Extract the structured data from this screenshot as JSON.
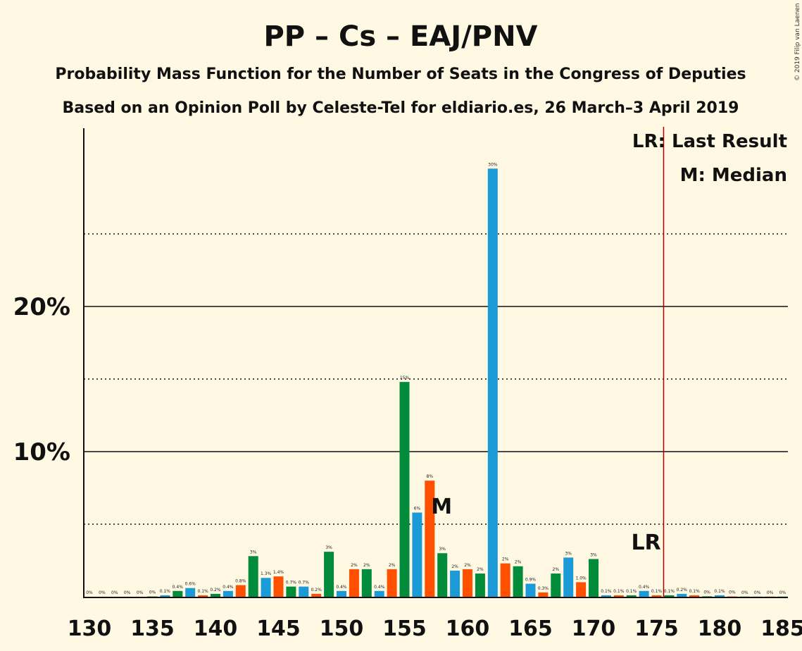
{
  "title": "PP – Cs – EAJ/PNV",
  "subtitle1": "Probability Mass Function for the Number of Seats in the Congress of Deputies",
  "subtitle2": "Based on an Opinion Poll by Celeste-Tel for eldiario.es, 26 March–3 April 2019",
  "copyright": "© 2019 Filip van Laenen",
  "legend": {
    "lr": "LR: Last Result",
    "m": "M: Median"
  },
  "markers": {
    "median_label": "M",
    "lr_label": "LR",
    "median_seat": 158,
    "last_result_seat": 176
  },
  "colors": {
    "background": "#FFF8E2",
    "pp": "#1A9BD7",
    "cs": "#FF5000",
    "pnv": "#008C3A",
    "lr_line": "#B00000"
  },
  "chart_data": {
    "type": "bar",
    "xlabel": "",
    "ylabel": "",
    "xlim": [
      130,
      185
    ],
    "ylim": [
      0,
      32
    ],
    "x_ticks": [
      "130",
      "135",
      "140",
      "145",
      "150",
      "155",
      "160",
      "165",
      "170",
      "175",
      "180",
      "185"
    ],
    "y_ticks": [
      "10%",
      "20%"
    ],
    "x": [
      130,
      131,
      132,
      133,
      134,
      135,
      136,
      137,
      138,
      139,
      140,
      141,
      142,
      143,
      144,
      145,
      146,
      147,
      148,
      149,
      150,
      151,
      152,
      153,
      154,
      155,
      156,
      157,
      158,
      159,
      160,
      161,
      162,
      163,
      164,
      165,
      166,
      167,
      168,
      169,
      170,
      171,
      172,
      173,
      174,
      175,
      176,
      177,
      178,
      179,
      180,
      181,
      182,
      183,
      184,
      185
    ],
    "values": [
      0,
      0,
      0,
      0,
      0,
      0.02,
      0.1,
      0.4,
      0.6,
      0.1,
      0.2,
      0.4,
      0.8,
      2.8,
      1.3,
      1.4,
      0.7,
      0.7,
      0.2,
      3.1,
      0.4,
      1.9,
      1.9,
      0.4,
      1.9,
      14.8,
      5.8,
      8.0,
      3.0,
      1.8,
      1.9,
      1.6,
      29.5,
      2.3,
      2.1,
      0.9,
      0.3,
      1.6,
      2.7,
      1.0,
      2.6,
      0.1,
      0.1,
      0.1,
      0.4,
      0.1,
      0.1,
      0.2,
      0.1,
      0.03,
      0.1,
      0.02,
      0.01,
      0.01,
      0.01,
      0.01
    ],
    "labels": [
      "0%",
      "0%",
      "0%",
      "0%",
      "0%",
      "0%",
      "0.1%",
      "0.4%",
      "0.6%",
      "0.1%",
      "0.2%",
      "0.4%",
      "0.8%",
      "3%",
      "1.3%",
      "1.4%",
      "0.7%",
      "0.7%",
      "0.2%",
      "3%",
      "0.4%",
      "2%",
      "2%",
      "0.4%",
      "2%",
      "15%",
      "6%",
      "8%",
      "3%",
      "2%",
      "2%",
      "2%",
      "30%",
      "2%",
      "2%",
      "0.9%",
      "0.3%",
      "2%",
      "3%",
      "1.0%",
      "3%",
      "0.1%",
      "0.1%",
      "0.1%",
      "0.4%",
      "0.1%",
      "0.1%",
      "0.2%",
      "0.1%",
      "0%",
      "0.1%",
      "0%",
      "0%",
      "0%",
      "0%",
      "0%"
    ],
    "colors": [
      "pp",
      "cs",
      "pnv",
      "pp",
      "cs",
      "pnv",
      "pp",
      "pnv",
      "pp",
      "cs",
      "pnv",
      "pp",
      "cs",
      "pnv",
      "pp",
      "cs",
      "pnv",
      "pp",
      "cs",
      "pnv",
      "pp",
      "cs",
      "pnv",
      "pp",
      "cs",
      "pnv",
      "pp",
      "cs",
      "pnv",
      "pp",
      "cs",
      "pnv",
      "pp",
      "cs",
      "pnv",
      "pp",
      "cs",
      "pnv",
      "pp",
      "cs",
      "pnv",
      "pp",
      "cs",
      "pnv",
      "pp",
      "cs",
      "pnv",
      "pp",
      "cs",
      "pnv",
      "pp",
      "cs",
      "pnv",
      "pp",
      "cs",
      "pnv"
    ],
    "grid": {
      "solid": [
        10,
        20
      ],
      "dotted": [
        5,
        15,
        25
      ]
    }
  }
}
